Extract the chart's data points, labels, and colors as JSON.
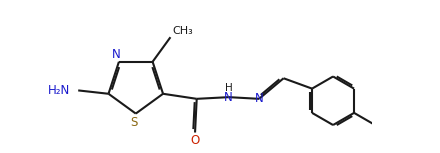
{
  "background_color": "#ffffff",
  "line_color": "#1a1a1a",
  "n_color": "#1a1acd",
  "s_color": "#8b6914",
  "o_color": "#cc2200",
  "lw": 1.5,
  "dbo": 0.055,
  "figsize": [
    4.4,
    1.53
  ],
  "dpi": 100,
  "xlim": [
    -0.5,
    8.5
  ],
  "ylim": [
    -2.0,
    2.5
  ]
}
